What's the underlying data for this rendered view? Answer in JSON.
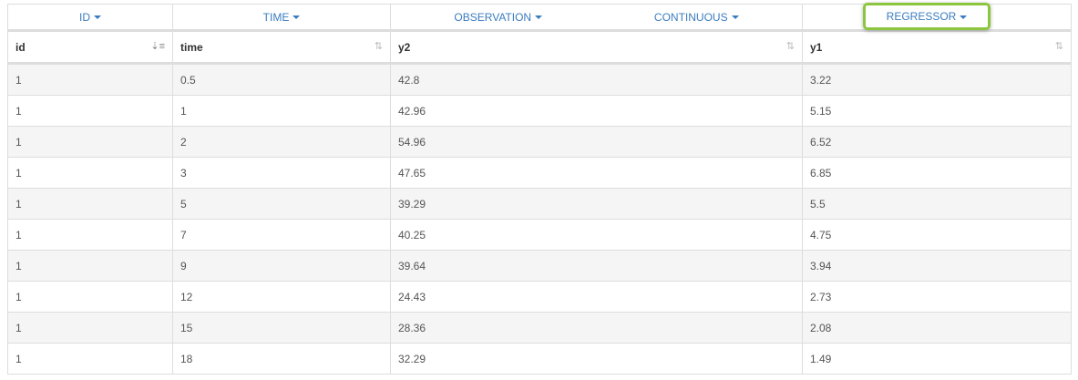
{
  "group_headers": [
    "ID",
    "TIME",
    "OBSERVATION",
    "CONTINUOUS",
    "REGRESSOR"
  ],
  "columns": [
    "id",
    "time",
    "y2",
    "y1"
  ],
  "highlight_color": "#8cc63f",
  "accent_color": "#3a7cc0",
  "rows": [
    [
      "1",
      "0.5",
      "42.8",
      "3.22"
    ],
    [
      "1",
      "1",
      "42.96",
      "5.15"
    ],
    [
      "1",
      "2",
      "54.96",
      "6.52"
    ],
    [
      "1",
      "3",
      "47.65",
      "6.85"
    ],
    [
      "1",
      "5",
      "39.29",
      "5.5"
    ],
    [
      "1",
      "7",
      "40.25",
      "4.75"
    ],
    [
      "1",
      "9",
      "39.64",
      "3.94"
    ],
    [
      "1",
      "12",
      "24.43",
      "2.73"
    ],
    [
      "1",
      "15",
      "28.36",
      "2.08"
    ],
    [
      "1",
      "18",
      "32.29",
      "1.49"
    ]
  ]
}
